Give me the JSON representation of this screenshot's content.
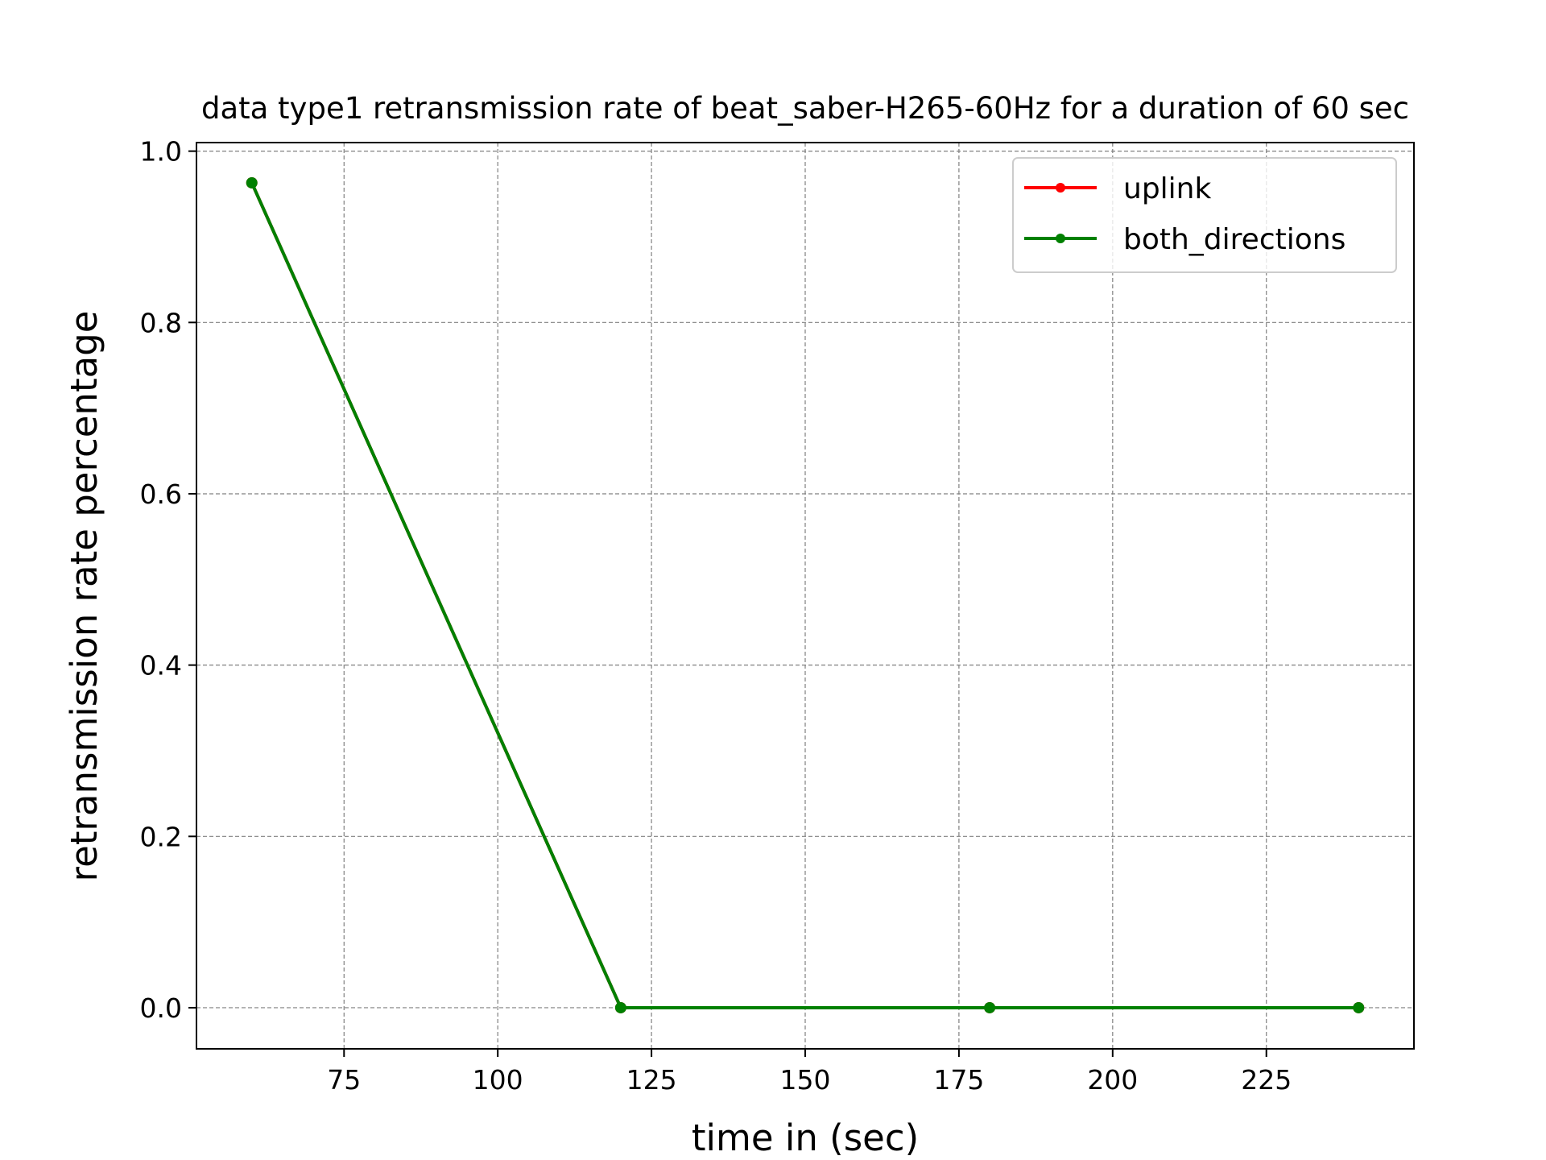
{
  "chart_data": {
    "type": "line",
    "title": "data type1 retransmission rate of beat_saber-H265-60Hz for a duration of 60 sec",
    "xlabel": "time in (sec)",
    "ylabel": "retransmission rate percentage",
    "xlim": [
      51,
      249
    ],
    "ylim": [
      -0.048,
      1.01
    ],
    "xticks": [
      75,
      100,
      125,
      150,
      175,
      200,
      225
    ],
    "xtick_labels": [
      "75",
      "100",
      "125",
      "150",
      "175",
      "200",
      "225"
    ],
    "yticks": [
      0.0,
      0.2,
      0.4,
      0.6,
      0.8,
      1.0
    ],
    "ytick_labels": [
      "0.0",
      "0.2",
      "0.4",
      "0.6",
      "0.8",
      "1.0"
    ],
    "grid": true,
    "legend_position": "top-right",
    "x": [
      60,
      120,
      180,
      240
    ],
    "series": [
      {
        "name": "uplink",
        "color": "#ff0000",
        "values": [
          0.963,
          0.0,
          0.0,
          0.0
        ]
      },
      {
        "name": "both_directions",
        "color": "#008000",
        "values": [
          0.963,
          0.0,
          0.0,
          0.0
        ]
      }
    ]
  }
}
